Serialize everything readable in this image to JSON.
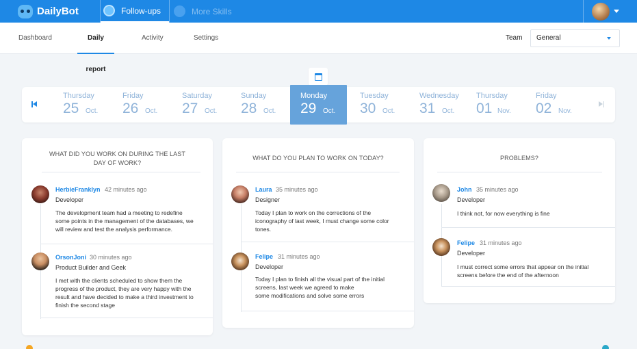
{
  "topbar": {
    "brand": "DailyBot",
    "tabs": [
      {
        "label": "Follow-ups",
        "icon": "followups-icon"
      },
      {
        "label": "More Skills",
        "icon": "skills-icon"
      }
    ]
  },
  "subnav": {
    "tabs": [
      "Dashboard",
      "Daily report",
      "Activity",
      "Settings"
    ],
    "active_tab": "Daily report",
    "team_label": "Team",
    "team_value": "General"
  },
  "dates": [
    {
      "day": "Thursday",
      "num": "25",
      "month": "Oct."
    },
    {
      "day": "Friday",
      "num": "26",
      "month": "Oct."
    },
    {
      "day": "Saturday",
      "num": "27",
      "month": "Oct."
    },
    {
      "day": "Sunday",
      "num": "28",
      "month": "Oct."
    },
    {
      "day": "Monday",
      "num": "29",
      "month": "Oct."
    },
    {
      "day": "Tuesday",
      "num": "30",
      "month": "Oct."
    },
    {
      "day": "Wednesday",
      "num": "31",
      "month": "Oct."
    },
    {
      "day": "Thursday",
      "num": "01",
      "month": "Nov."
    },
    {
      "day": "Friday",
      "num": "02",
      "month": "Nov."
    }
  ],
  "selected_date": "Monday 29 Oct.",
  "cards": [
    {
      "title_line1": "WHAT DID YOU WORK ON DURING THE LAST",
      "title_line2": "DAY OF WORK?",
      "entries": [
        {
          "name": "HerbieFranklyn",
          "time": "42 minutes ago",
          "role": "Developer",
          "lines": [
            "The development team had a meeting to redefine",
            "some points in the management of the databases, we",
            "will review and test the analysis performance."
          ]
        },
        {
          "name": "OrsonJoni",
          "time": "30 minutes ago",
          "role": "Product Builder and Geek",
          "lines": [
            "I met with the clients scheduled to show them the",
            "progress of the product, they are very happy with the",
            "result and have decided to make a third investment to",
            "finish the second stage"
          ]
        }
      ]
    },
    {
      "title_line1": "WHAT DO YOU PLAN TO WORK ON TODAY?",
      "entries": [
        {
          "name": "Laura",
          "time": "35 minutes ago",
          "role": "Designer",
          "lines": [
            "Today I plan to work on the corrections of the",
            "iconography of last week, I must change some color",
            "tones."
          ]
        },
        {
          "name": "Felipe",
          "time": "31 minutes ago",
          "role": "Developer",
          "lines": [
            "Today I plan to finish all the visual part of the initial",
            "screens, last week we agreed to make",
            "some modifications and solve some errors"
          ]
        }
      ]
    },
    {
      "title_line1": "PROBLEMS?",
      "entries": [
        {
          "name": "John",
          "time": "35 minutes ago",
          "role": "Developer",
          "lines": [
            "I think not, for now everything is fine"
          ]
        },
        {
          "name": "Felipe",
          "time": "31 minutes ago",
          "role": "Developer",
          "lines": [
            "I must correct some errors that appear on the initial",
            "screens before the end of the afternoon"
          ]
        }
      ]
    }
  ]
}
